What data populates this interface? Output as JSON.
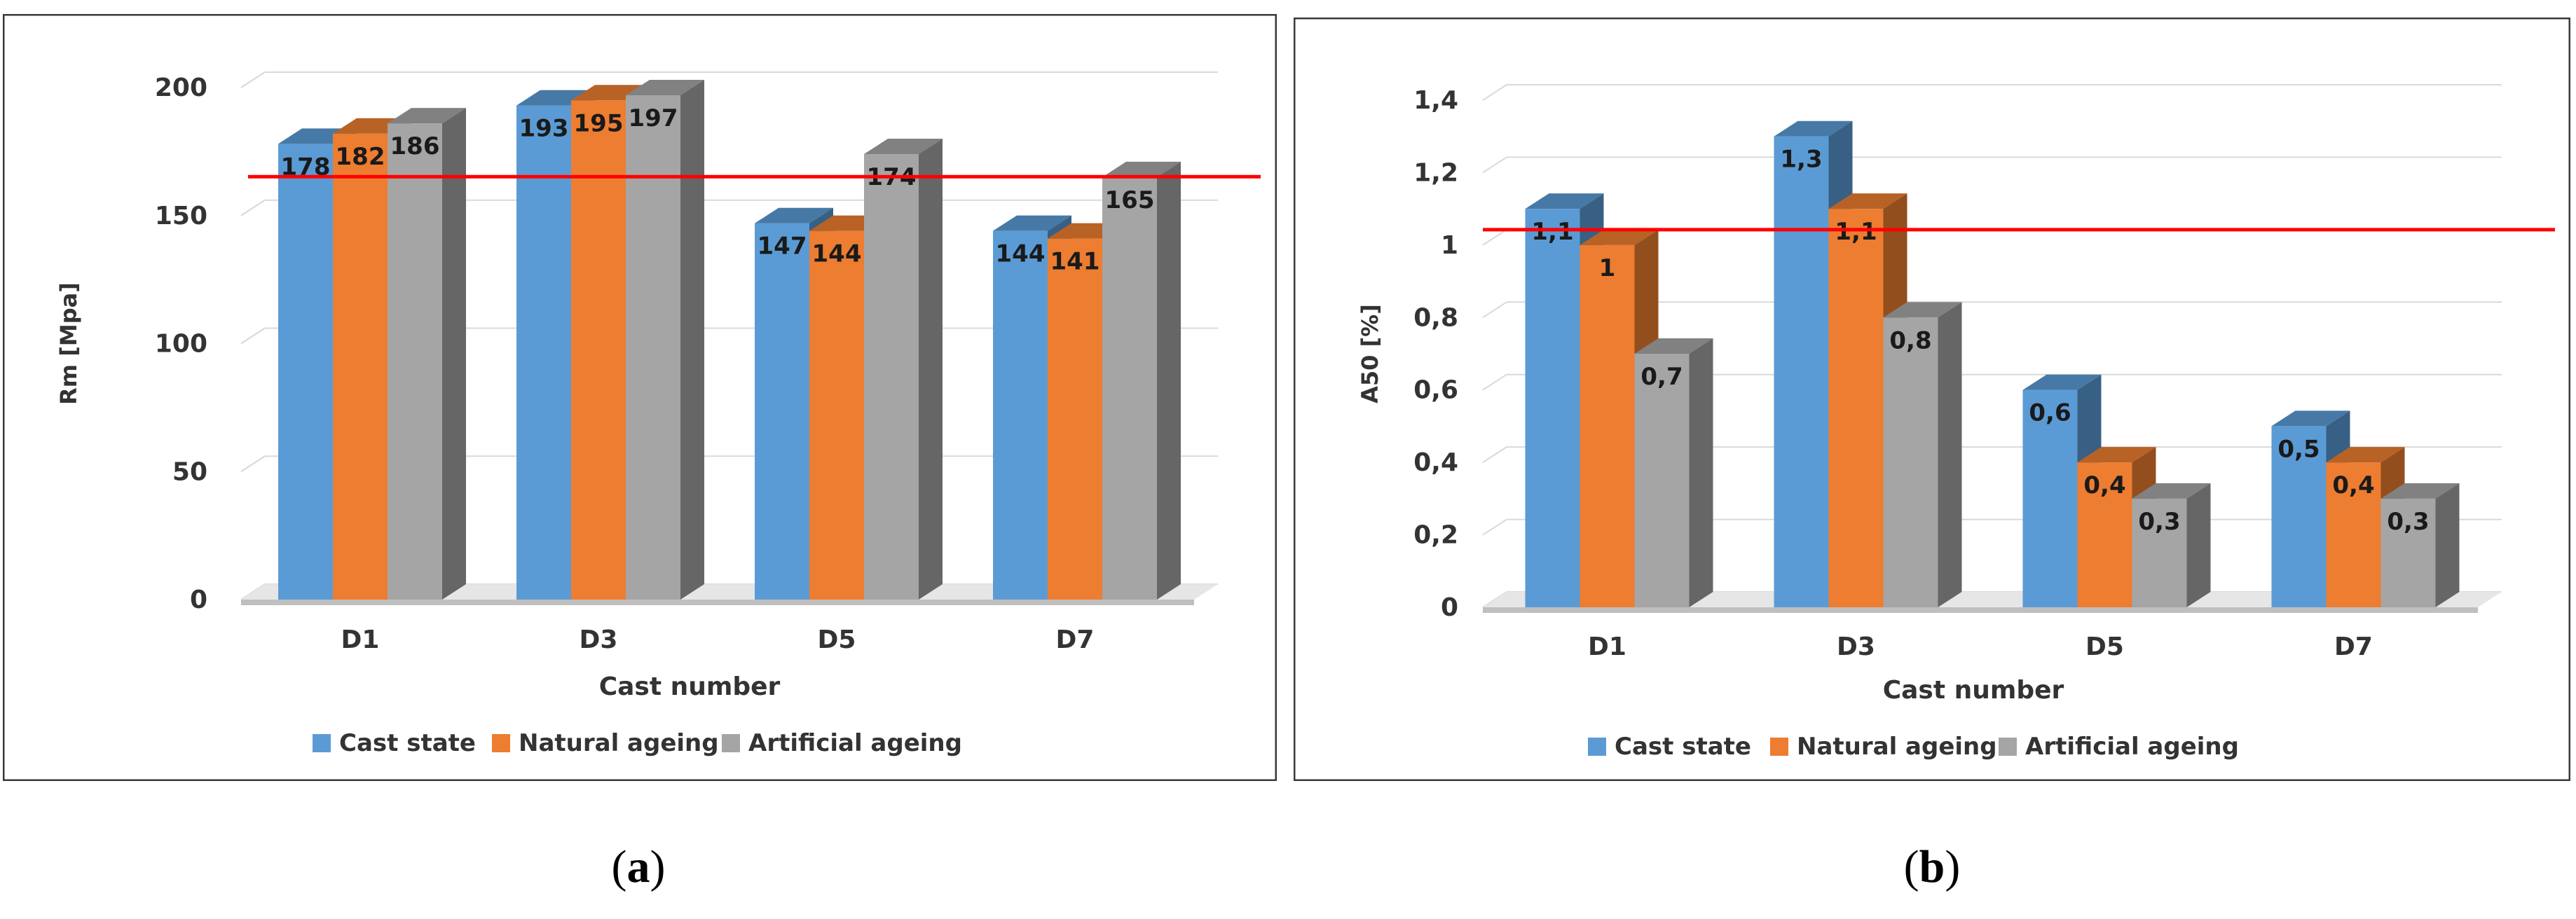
{
  "figures": [
    {
      "caption_open": "(",
      "caption_letter": "a",
      "caption_close": ")"
    },
    {
      "caption_open": "(",
      "caption_letter": "b",
      "caption_close": ")"
    }
  ],
  "chart_data": [
    {
      "type": "bar",
      "title": "",
      "xlabel": "Cast number",
      "ylabel": "Rm [Mpa]",
      "categories": [
        "D1",
        "D3",
        "D5",
        "D7"
      ],
      "ylim": [
        0,
        200
      ],
      "yticks": [
        0,
        50,
        100,
        150,
        200
      ],
      "ytick_labels": [
        "0",
        "50",
        "100",
        "150",
        "200"
      ],
      "series": [
        {
          "name": "Cast state",
          "values": [
            178,
            193,
            147,
            144
          ],
          "labels": [
            "178",
            "193",
            "147",
            "144"
          ],
          "color": "#5b9bd5"
        },
        {
          "name": "Natural ageing",
          "values": [
            182,
            195,
            144,
            141
          ],
          "labels": [
            "182",
            "195",
            "144",
            "141"
          ],
          "color": "#ed7d31"
        },
        {
          "name": "Artificial ageing",
          "values": [
            186,
            197,
            174,
            165
          ],
          "labels": [
            "186",
            "197",
            "174",
            "165"
          ],
          "color": "#a5a5a5"
        }
      ],
      "reference_line": {
        "value": 160,
        "color": "#ff0000"
      },
      "legend_position": "bottom",
      "grid": true
    },
    {
      "type": "bar",
      "title": "",
      "xlabel": "Cast number",
      "ylabel": "A50 [%]",
      "categories": [
        "D1",
        "D3",
        "D5",
        "D7"
      ],
      "ylim": [
        0,
        1.4
      ],
      "yticks": [
        0,
        0.2,
        0.4,
        0.6,
        0.8,
        1,
        1.2,
        1.4
      ],
      "ytick_labels": [
        "0",
        "0,2",
        "0,4",
        "0,6",
        "0,8",
        "1",
        "1,2",
        "1,4"
      ],
      "series": [
        {
          "name": "Cast state",
          "values": [
            1.1,
            1.3,
            0.6,
            0.5
          ],
          "labels": [
            "1,1",
            "1,3",
            "0,6",
            "0,5"
          ],
          "color": "#5b9bd5"
        },
        {
          "name": "Natural ageing",
          "values": [
            1.0,
            1.1,
            0.4,
            0.4
          ],
          "labels": [
            "1",
            "1,1",
            "0,4",
            "0,4"
          ],
          "color": "#ed7d31"
        },
        {
          "name": "Artificial ageing",
          "values": [
            0.7,
            0.8,
            0.3,
            0.3
          ],
          "labels": [
            "0,7",
            "0,8",
            "0,3",
            "0,3"
          ],
          "color": "#a5a5a5"
        }
      ],
      "reference_line": {
        "value": 1.0,
        "color": "#ff0000"
      },
      "legend_position": "bottom",
      "grid": true
    }
  ]
}
